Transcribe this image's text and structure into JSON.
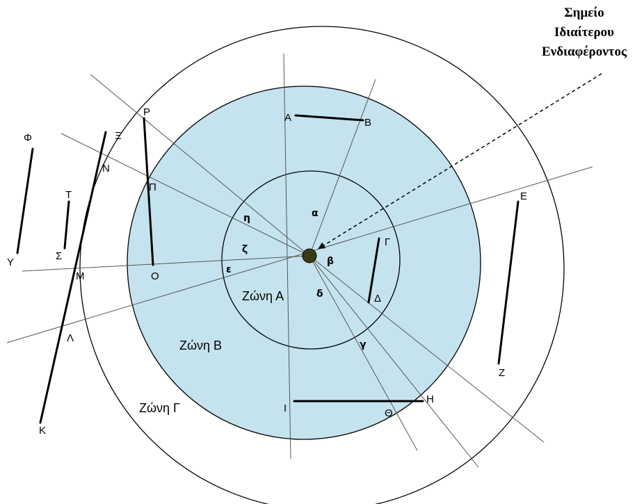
{
  "title": [
    "Σημείο",
    "Ιδιαίτερου",
    "Ενδιαφέροντος"
  ],
  "zones": {
    "a": "Ζώνη Α",
    "b": "Ζώνη Β",
    "c": "Ζώνη Γ"
  },
  "sectors": {
    "alpha": "α",
    "beta": "β",
    "gamma": "γ",
    "delta": "δ",
    "epsilon": "ε",
    "zeta": "ζ",
    "eta": "η"
  },
  "points": {
    "A": "A",
    "B": "B",
    "G": "Γ",
    "D": "Δ",
    "E": "E",
    "Z": "Z",
    "H": "H",
    "TH": "Θ",
    "I": "I",
    "K": "K",
    "L": "Λ",
    "M": "M",
    "N": "N",
    "X": "Ξ",
    "O": "O",
    "P": "Π",
    "R": "P",
    "S": "Σ",
    "T": "T",
    "Y": "Y",
    "F": "Φ"
  },
  "colors": {
    "zone_b_fill": "#c5e3ee",
    "center_point": "#3a3a14",
    "lines": "#000000"
  }
}
